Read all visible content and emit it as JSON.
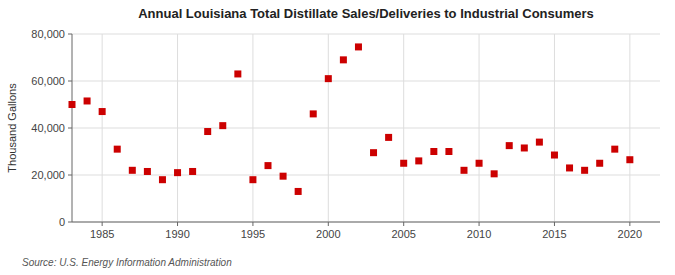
{
  "chart_data": {
    "type": "scatter",
    "title": "Annual Louisiana Total Distillate Sales/Deliveries to Industrial Consumers",
    "ylabel": "Thousand Gallons",
    "source": "Source: U.S. Energy Information Administration",
    "color": "#cc0000",
    "marker": "square",
    "grid": true,
    "xlim": [
      1983,
      2022
    ],
    "ylim": [
      0,
      80000
    ],
    "xticks": [
      1985,
      1990,
      1995,
      2000,
      2005,
      2010,
      2015,
      2020
    ],
    "yticks": [
      0,
      {
        "value": 20000,
        "label": "20,000"
      },
      {
        "value": 40000,
        "label": "40,000"
      },
      {
        "value": 60000,
        "label": "60,000"
      },
      {
        "value": 80000,
        "label": "80,000"
      }
    ],
    "x": [
      1983,
      1984,
      1985,
      1986,
      1987,
      1988,
      1989,
      1990,
      1991,
      1992,
      1993,
      1994,
      1995,
      1996,
      1997,
      1998,
      1999,
      2000,
      2001,
      2002,
      2003,
      2004,
      2005,
      2006,
      2007,
      2008,
      2009,
      2010,
      2011,
      2012,
      2013,
      2014,
      2015,
      2016,
      2017,
      2018,
      2019,
      2020
    ],
    "values": [
      50000,
      51500,
      47000,
      31000,
      22000,
      21500,
      18000,
      21000,
      21500,
      38500,
      41000,
      63000,
      18000,
      24000,
      19500,
      13000,
      46000,
      61000,
      69000,
      74500,
      29500,
      36000,
      25000,
      26000,
      30000,
      30000,
      22000,
      25000,
      20500,
      32500,
      31500,
      34000,
      28500,
      23000,
      22000,
      25000,
      31000,
      26500
    ]
  }
}
